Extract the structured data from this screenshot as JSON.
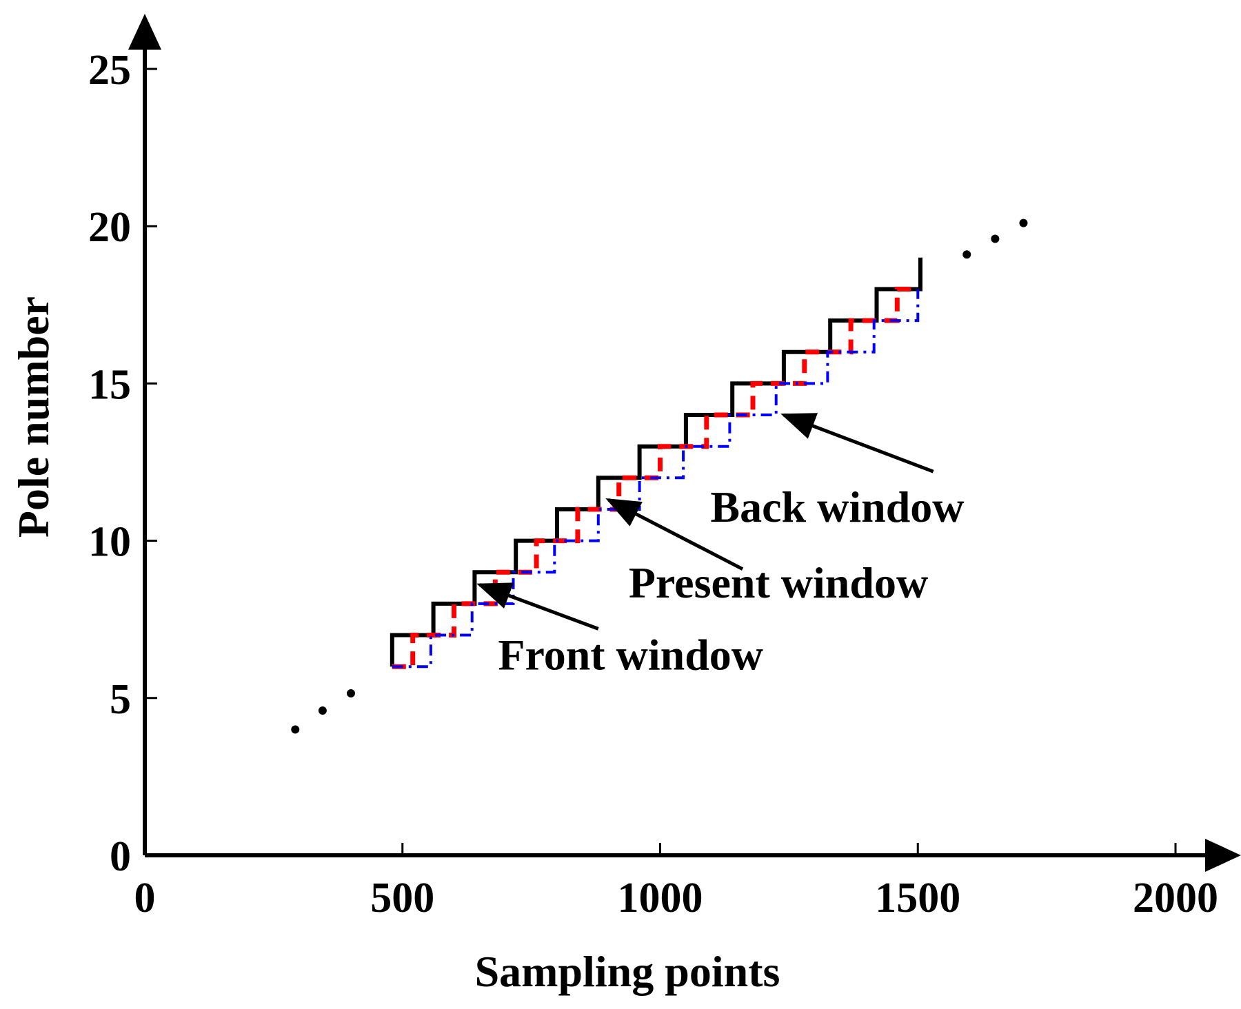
{
  "chart_data": {
    "type": "line",
    "xlabel": "Sampling points",
    "ylabel": "Pole number",
    "xlim": [
      0,
      2000
    ],
    "ylim": [
      0,
      25
    ],
    "xticks": [
      "0",
      "500",
      "1000",
      "1500",
      "2000"
    ],
    "yticks": [
      "0",
      "5",
      "10",
      "15",
      "20",
      "25"
    ],
    "x_tick_values": [
      0,
      500,
      1000,
      1500,
      2000
    ],
    "y_tick_values": [
      0,
      5,
      10,
      15,
      20,
      25
    ],
    "grid": false,
    "colors": {
      "front": "#000000",
      "present": "#ff0000",
      "back": "#0000ff",
      "axis": "#000000"
    },
    "series": [
      {
        "name": "Front window",
        "style": "solid",
        "x": [
          480,
          480,
          560,
          560,
          640,
          640,
          720,
          720,
          800,
          800,
          880,
          880,
          960,
          960,
          1050,
          1050,
          1140,
          1140,
          1240,
          1240,
          1330,
          1330,
          1420,
          1420,
          1505,
          1505
        ],
        "y": [
          6,
          7,
          7,
          8,
          8,
          9,
          9,
          10,
          10,
          11,
          11,
          12,
          12,
          13,
          13,
          14,
          14,
          15,
          15,
          16,
          16,
          17,
          17,
          18,
          18,
          19
        ]
      },
      {
        "name": "Present window",
        "style": "dash",
        "x": [
          480,
          520,
          520,
          600,
          600,
          680,
          680,
          760,
          760,
          840,
          840,
          920,
          920,
          1000,
          1000,
          1090,
          1090,
          1180,
          1180,
          1280,
          1280,
          1370,
          1370,
          1460,
          1460,
          1500
        ],
        "y": [
          6,
          6,
          7,
          7,
          8,
          8,
          9,
          9,
          10,
          10,
          11,
          11,
          12,
          12,
          13,
          13,
          14,
          14,
          15,
          15,
          16,
          16,
          17,
          17,
          18,
          18
        ]
      },
      {
        "name": "Back window",
        "style": "dashdot",
        "x": [
          480,
          555,
          555,
          635,
          635,
          715,
          715,
          795,
          795,
          880,
          880,
          960,
          960,
          1045,
          1045,
          1135,
          1135,
          1225,
          1225,
          1325,
          1325,
          1415,
          1415,
          1500,
          1500
        ],
        "y": [
          6,
          6,
          7,
          7,
          8,
          8,
          9,
          9,
          10,
          10,
          11,
          11,
          12,
          12,
          13,
          13,
          14,
          14,
          15,
          15,
          16,
          16,
          17,
          17,
          18
        ]
      }
    ],
    "continuation_dots": [
      {
        "x": 292,
        "y": 4.0
      },
      {
        "x": 345,
        "y": 4.6
      },
      {
        "x": 400,
        "y": 5.15
      },
      {
        "x": 1595,
        "y": 19.1
      },
      {
        "x": 1650,
        "y": 19.6
      },
      {
        "x": 1705,
        "y": 20.1
      }
    ],
    "annotations": [
      {
        "text": "Front window",
        "text_x": 1200,
        "text_y": 5.9,
        "line_from": {
          "x": 880,
          "y": 7.2
        },
        "arrow_to": {
          "x": 650,
          "y": 8.6
        }
      },
      {
        "text": "Present window",
        "text_x": 1520,
        "text_y": 8.2,
        "line_from": {
          "x": 1160,
          "y": 9.1
        },
        "arrow_to": {
          "x": 900,
          "y": 11.3
        }
      },
      {
        "text": "Back window",
        "text_x": 1590,
        "text_y": 10.6,
        "line_from": {
          "x": 1530,
          "y": 12.2
        },
        "arrow_to": {
          "x": 1240,
          "y": 14.0
        }
      }
    ]
  }
}
